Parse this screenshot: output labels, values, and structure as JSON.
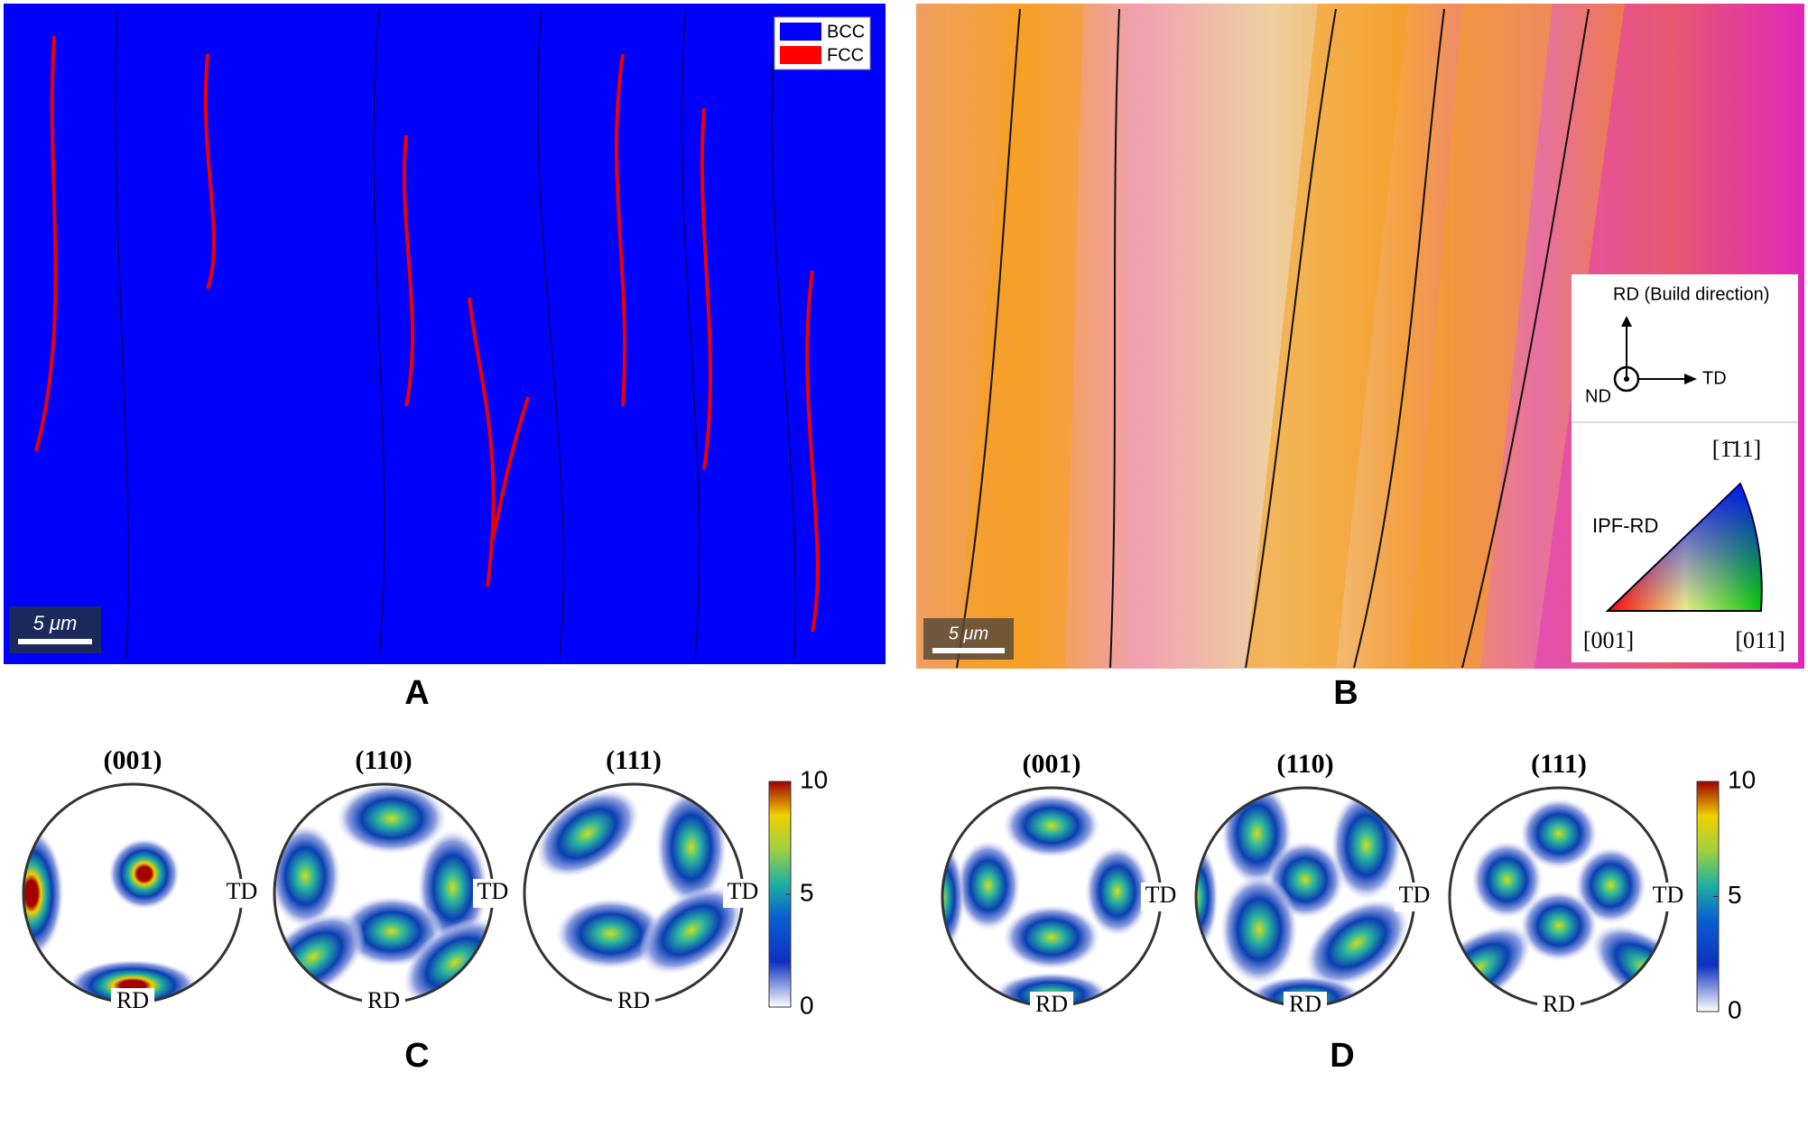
{
  "panels": [
    {
      "label": "A",
      "legend": [
        "BCC",
        "FCC"
      ],
      "scale_bar": "5 μm"
    },
    {
      "label": "B",
      "scale_bar": "5 μm",
      "axes": {
        "rd": "RD (Build direction)",
        "td": "TD",
        "nd": "ND"
      },
      "ipf": {
        "title": "IPF-RD",
        "corners": [
          "[001]",
          "[011]",
          "[1̄11]"
        ]
      }
    },
    {
      "label": "C",
      "poles": [
        "(001)",
        "(110)",
        "(111)"
      ],
      "td": "TD",
      "rd": "RD",
      "colorbar": {
        "lim": [
          0,
          10
        ],
        "ticks": [
          0,
          5,
          10
        ]
      }
    },
    {
      "label": "D",
      "poles": [
        "(001)",
        "(110)",
        "(111)"
      ],
      "td": "TD",
      "rd": "RD",
      "colorbar": {
        "lim": [
          0,
          10
        ],
        "ticks": [
          0,
          5,
          10
        ]
      }
    }
  ]
}
